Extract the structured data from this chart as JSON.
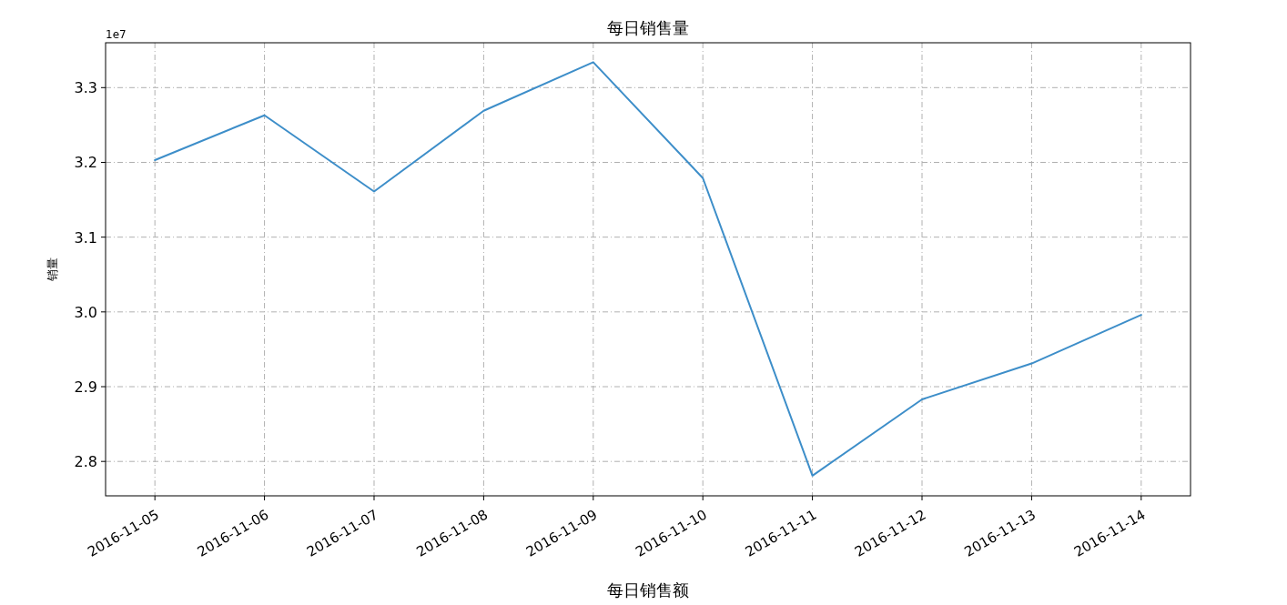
{
  "chart_data": {
    "type": "line",
    "title": "每日销售量",
    "xlabel": "每日销售额",
    "ylabel": "销量",
    "x": [
      "2016-11-05",
      "2016-11-06",
      "2016-11-07",
      "2016-11-08",
      "2016-11-09",
      "2016-11-10",
      "2016-11-11",
      "2016-11-12",
      "2016-11-13",
      "2016-11-14"
    ],
    "series": [
      {
        "color": "#3d8ec9",
        "values": [
          3.203,
          3.263,
          3.161,
          3.269,
          3.334,
          3.179,
          2.781,
          2.883,
          2.931,
          2.996
        ]
      }
    ],
    "xlim": [
      "2016-11-04T13:12",
      "2016-11-14T10:48"
    ],
    "xticks": [
      {
        "value": "2016-11-05",
        "label": "2016-11-05"
      },
      {
        "value": "2016-11-06",
        "label": "2016-11-06"
      },
      {
        "value": "2016-11-07",
        "label": "2016-11-07"
      },
      {
        "value": "2016-11-08",
        "label": "2016-11-08"
      },
      {
        "value": "2016-11-09",
        "label": "2016-11-09"
      },
      {
        "value": "2016-11-10",
        "label": "2016-11-10"
      },
      {
        "value": "2016-11-11",
        "label": "2016-11-11"
      },
      {
        "value": "2016-11-12",
        "label": "2016-11-12"
      },
      {
        "value": "2016-11-13",
        "label": "2016-11-13"
      },
      {
        "value": "2016-11-14",
        "label": "2016-11-14"
      }
    ],
    "ylim": [
      2.754,
      3.36
    ],
    "yticks": [
      2.8,
      2.9,
      {
        "value": 3.0,
        "label": "3.0"
      },
      3.1,
      3.2,
      3.3
    ],
    "annotations": [
      "1e7"
    ],
    "grid": true
  }
}
